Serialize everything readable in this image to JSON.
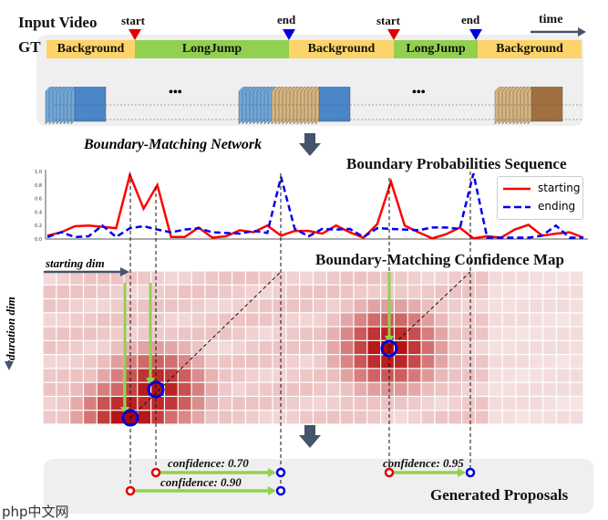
{
  "header": {
    "input_video": "Input Video",
    "gt": "GT",
    "time": "time"
  },
  "markers": [
    {
      "label": "start",
      "color": "#e00000"
    },
    {
      "label": "end",
      "color": "#0000dd"
    },
    {
      "label": "start",
      "color": "#e00000"
    },
    {
      "label": "end",
      "color": "#0000dd"
    }
  ],
  "gt_segments": [
    {
      "label": "Background",
      "color": "#fcd46a"
    },
    {
      "label": "LongJump",
      "color": "#92d050"
    },
    {
      "label": "Background",
      "color": "#fcd46a"
    },
    {
      "label": "LongJump",
      "color": "#92d050"
    },
    {
      "label": "Background",
      "color": "#fcd46a"
    }
  ],
  "ellipsis": [
    "•••",
    "•••"
  ],
  "network_label": "Boundary-Matching Network",
  "sequence_title": "Boundary Probabilities Sequence",
  "probability_plot": {
    "type": "line",
    "yticks": [
      "0.0",
      "0.2",
      "0.4",
      "0.6",
      "0.8",
      "1.0"
    ],
    "ylim": [
      0,
      1
    ],
    "legend": {
      "starting": "starting",
      "ending": "ending"
    },
    "series": [
      {
        "name": "starting",
        "color": "#ff0000",
        "style": "solid",
        "values": [
          0.05,
          0.1,
          0.19,
          0.2,
          0.18,
          0.16,
          0.95,
          0.45,
          0.8,
          0.03,
          0.03,
          0.17,
          0.02,
          0.04,
          0.13,
          0.1,
          0.2,
          0.05,
          0.12,
          0.12,
          0.08,
          0.2,
          0.1,
          0.02,
          0.22,
          0.85,
          0.2,
          0.1,
          0.01,
          0.07,
          0.17,
          0.01,
          0.04,
          0.02,
          0.14,
          0.21,
          0.05,
          0.08,
          0.1,
          0.02
        ]
      },
      {
        "name": "ending",
        "color": "#0000ee",
        "style": "dashed",
        "values": [
          0.03,
          0.1,
          0.03,
          0.04,
          0.2,
          0.03,
          0.16,
          0.19,
          0.14,
          0.1,
          0.14,
          0.16,
          0.1,
          0.09,
          0.08,
          0.12,
          0.09,
          0.92,
          0.15,
          0.04,
          0.15,
          0.14,
          0.15,
          0.03,
          0.16,
          0.15,
          0.14,
          0.13,
          0.17,
          0.17,
          0.15,
          0.97,
          0.02,
          0.02,
          0.02,
          0.02,
          0.05,
          0.2,
          0.02,
          0.02
        ]
      }
    ]
  },
  "map_title": "Boundary-Matching Confidence Map",
  "axes": {
    "starting_dim": "starting dim",
    "duration_dim": "duration dim"
  },
  "proposals_title": "Generated Proposals",
  "proposals": [
    {
      "label": "confidence: 0.70"
    },
    {
      "label": "confidence: 0.90"
    },
    {
      "label": "confidence: 0.95"
    }
  ],
  "colors": {
    "start": "#e00000",
    "end": "#0000dd",
    "arrow": "#92d050",
    "panel": "#efefef",
    "heat": "#b00000"
  },
  "watermark": "php中文网"
}
